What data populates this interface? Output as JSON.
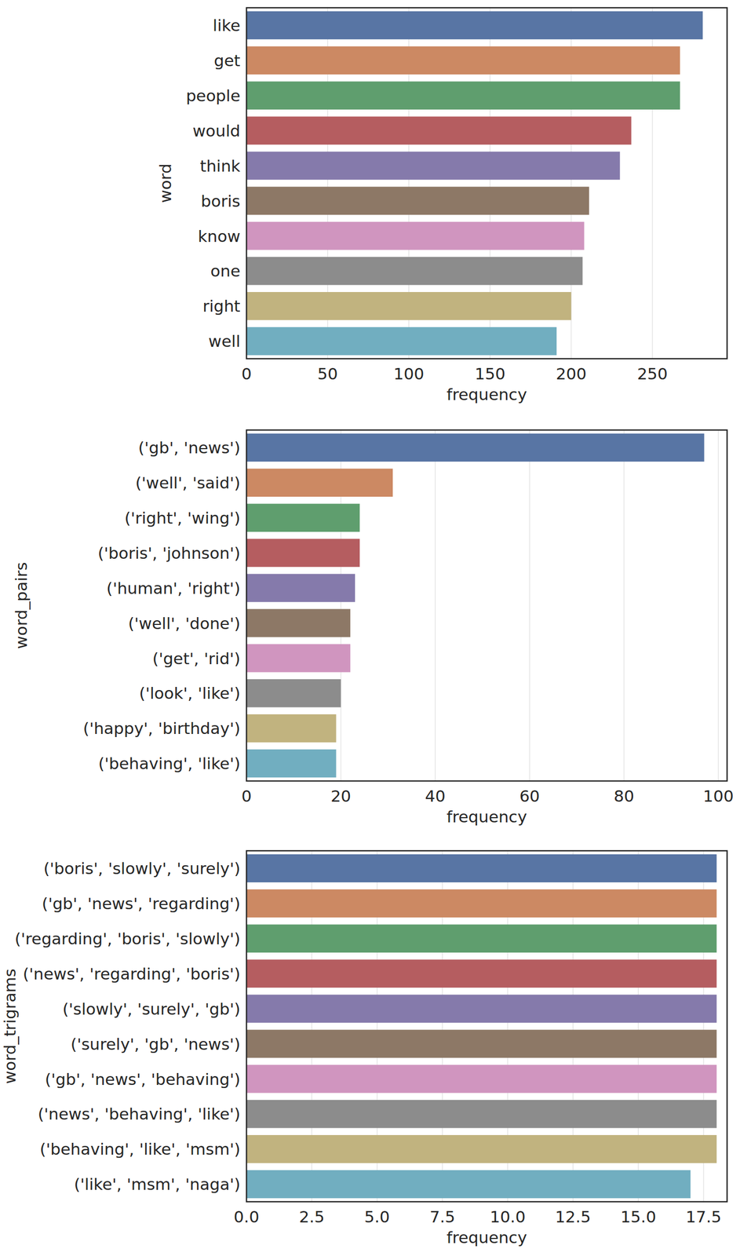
{
  "chart_data": [
    {
      "type": "bar",
      "orientation": "horizontal",
      "x_label": "frequency",
      "y_label": "word",
      "categories": [
        "like",
        "get",
        "people",
        "would",
        "think",
        "boris",
        "know",
        "one",
        "right",
        "well"
      ],
      "values": [
        281,
        267,
        267,
        237,
        230,
        211,
        208,
        207,
        200,
        191
      ],
      "colors": [
        "#5875a4",
        "#cc8963",
        "#5f9e6e",
        "#b55d60",
        "#857aab",
        "#8d7866",
        "#d095bf",
        "#8c8c8c",
        "#c1b37f",
        "#71aec0"
      ],
      "xlim": [
        0,
        296
      ],
      "xticks": [
        0,
        50,
        100,
        150,
        200,
        250
      ],
      "grid": true
    },
    {
      "type": "bar",
      "orientation": "horizontal",
      "x_label": "frequency",
      "y_label": "word_pairs",
      "categories": [
        "('gb', 'news')",
        "('well', 'said')",
        "('right', 'wing')",
        "('boris', 'johnson')",
        "('human', 'right')",
        "('well', 'done')",
        "('get', 'rid')",
        "('look', 'like')",
        "('happy', 'birthday')",
        "('behaving', 'like')"
      ],
      "values": [
        97,
        31,
        24,
        24,
        23,
        22,
        22,
        20,
        19,
        19
      ],
      "colors": [
        "#5875a4",
        "#cc8963",
        "#5f9e6e",
        "#b55d60",
        "#857aab",
        "#8d7866",
        "#d095bf",
        "#8c8c8c",
        "#c1b37f",
        "#71aec0"
      ],
      "xlim": [
        0,
        101.85
      ],
      "xticks": [
        0,
        20,
        40,
        60,
        80,
        100
      ],
      "grid": true
    },
    {
      "type": "bar",
      "orientation": "horizontal",
      "x_label": "frequency",
      "y_label": "word_trigrams",
      "categories": [
        "('boris', 'slowly', 'surely')",
        "('gb', 'news', 'regarding')",
        "('regarding', 'boris', 'slowly')",
        "('news', 'regarding', 'boris')",
        "('slowly', 'surely', 'gb')",
        "('surely', 'gb', 'news')",
        "('gb', 'news', 'behaving')",
        "('news', 'behaving', 'like')",
        "('behaving', 'like', 'msm')",
        "('like', 'msm', 'naga')"
      ],
      "values": [
        18,
        18,
        18,
        18,
        18,
        18,
        18,
        18,
        18,
        17
      ],
      "colors": [
        "#5875a4",
        "#cc8963",
        "#5f9e6e",
        "#b55d60",
        "#857aab",
        "#8d7866",
        "#d095bf",
        "#8c8c8c",
        "#c1b37f",
        "#71aec0"
      ],
      "xlim": [
        0,
        18.4
      ],
      "xticks": [
        {
          "value": 0,
          "label": "0.0"
        },
        2.5,
        {
          "value": 5,
          "label": "5.0"
        },
        7.5,
        {
          "value": 10,
          "label": "10.0"
        },
        12.5,
        {
          "value": 15,
          "label": "15.0"
        },
        17.5
      ],
      "grid": true
    }
  ]
}
